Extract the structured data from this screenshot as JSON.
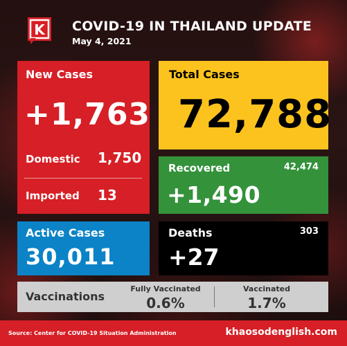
{
  "header": {
    "title": "COVID-19 IN THAILAND UPDATE",
    "date": "May 4, 2021",
    "logo_letter": "K"
  },
  "new_cases": {
    "label": "New Cases",
    "value": "+1,763",
    "domestic_label": "Domestic",
    "domestic_value": "1,750",
    "imported_label": "Imported",
    "imported_value": "13"
  },
  "total_cases": {
    "label": "Total Cases",
    "value": "72,788"
  },
  "recovered": {
    "label": "Recovered",
    "total": "42,474",
    "value": "+1,490"
  },
  "active_cases": {
    "label": "Active Cases",
    "value": "30,011"
  },
  "deaths": {
    "label": "Deaths",
    "total": "303",
    "value": "+27"
  },
  "vaccinations": {
    "label": "Vaccinations",
    "fully_label": "Fully Vaccinated",
    "fully_value": "0.6%",
    "vaccinated_label": "Vaccinated",
    "vaccinated_value": "1.7%"
  },
  "footer": {
    "source": "Source: Center for COVID-19 Situation Administration",
    "site": "khaosodenglish.com"
  },
  "colors": {
    "red": "#d61f26",
    "yellow": "#fcc31f",
    "green": "#34923b",
    "blue": "#0b83c6",
    "black": "#000000",
    "grey": "#cfcfcf"
  }
}
